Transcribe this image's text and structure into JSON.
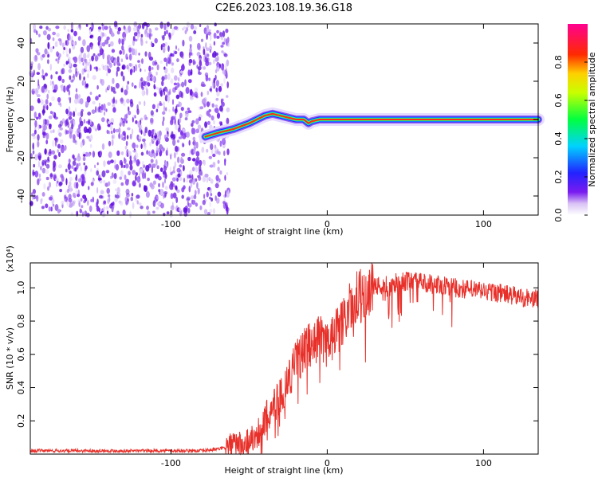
{
  "title": "C2E6.2023.108.19.36.G18",
  "colors": {
    "snr_line": "#e8302a",
    "scatter_purple": "#6a14e0",
    "background": "#ffffff",
    "frame": "#000000"
  },
  "chart_data": [
    {
      "type": "heatmap",
      "xlabel": "Height of straight line (km)",
      "ylabel": "Frequency (Hz)",
      "xlim": [
        -190,
        135
      ],
      "ylim": [
        -50,
        50
      ],
      "xticks": [
        -100,
        0,
        100
      ],
      "yticks": [
        -40,
        -20,
        0,
        20,
        40
      ],
      "colorbar": {
        "label": "Normalized spectral amplitude",
        "range": [
          0.0,
          1.0
        ],
        "ticks": [
          0.0,
          0.2,
          0.4,
          0.6,
          0.8
        ],
        "colormap": "rainbow (white-purple-blue-cyan-green-yellow-red-magenta)"
      },
      "noise_region_x": [
        -190,
        -63
      ],
      "signal_track": {
        "x": [
          -78,
          -70,
          -60,
          -50,
          -45,
          -40,
          -35,
          -30,
          -25,
          -20,
          -15,
          -12,
          -10,
          -5,
          0,
          20,
          50,
          80,
          110,
          135
        ],
        "y": [
          -9,
          -7,
          -5,
          -2,
          0,
          2,
          3,
          2,
          1,
          0,
          0,
          -2,
          -1,
          0,
          0,
          0,
          0,
          0,
          0,
          0
        ]
      }
    },
    {
      "type": "line",
      "xlabel": "Height of straight line (km)",
      "ylabel": "SNR (10 * v/v)",
      "y_multiplier": "(x10⁴)",
      "xlim": [
        -190,
        135
      ],
      "ylim": [
        0,
        1.15
      ],
      "xticks": [
        -100,
        0,
        100
      ],
      "yticks": [
        0.2,
        0.4,
        0.6,
        0.8,
        1.0
      ],
      "series": [
        {
          "x": [
            -190,
            -150,
            -110,
            -80,
            -70,
            -60,
            -50,
            -45,
            -40,
            -35,
            -30,
            -25,
            -20,
            -15,
            -10,
            -5,
            0,
            5,
            10,
            15,
            20,
            25,
            30,
            40,
            50,
            60,
            70,
            80,
            90,
            100,
            110,
            120,
            135
          ],
          "values": [
            0.02,
            0.02,
            0.02,
            0.02,
            0.03,
            0.05,
            0.08,
            0.12,
            0.2,
            0.3,
            0.35,
            0.45,
            0.55,
            0.62,
            0.68,
            0.7,
            0.66,
            0.72,
            0.8,
            0.88,
            0.95,
            0.97,
            1.0,
            1.02,
            1.04,
            1.03,
            1.02,
            1.0,
            0.99,
            0.98,
            0.97,
            0.95,
            0.93
          ]
        }
      ]
    }
  ]
}
